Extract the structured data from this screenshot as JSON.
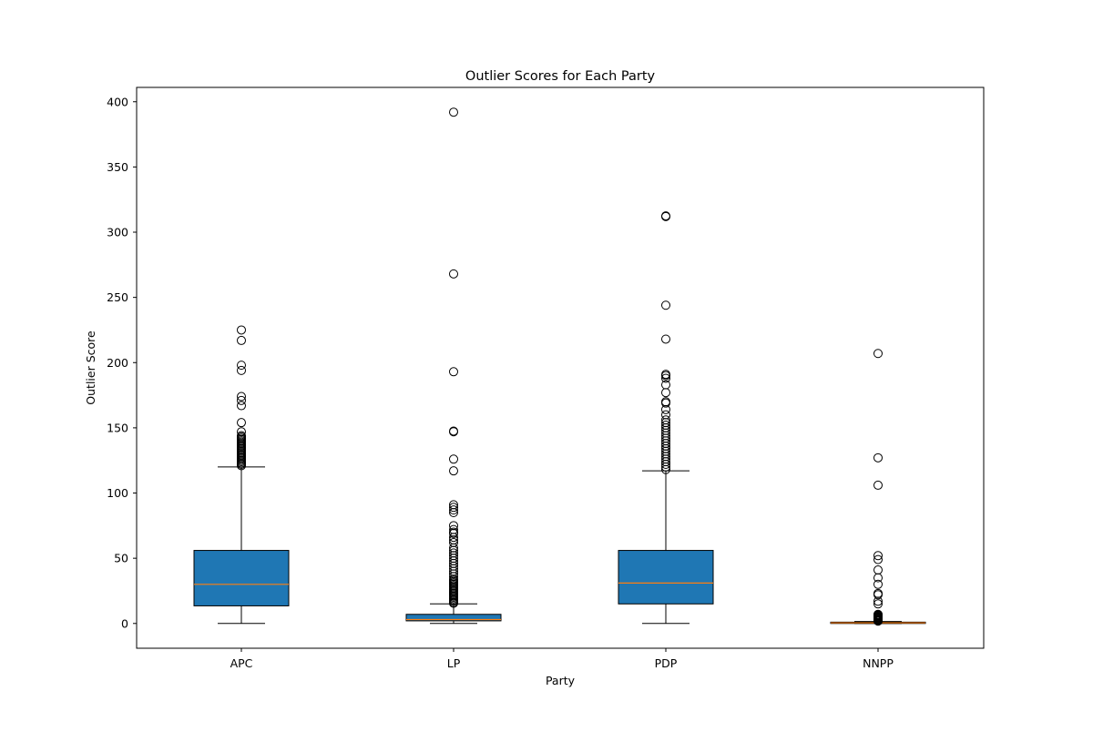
{
  "chart_data": {
    "type": "box",
    "title": "Outlier Scores for Each Party",
    "xlabel": "Party",
    "ylabel": "Outlier Score",
    "ylim": [
      -19,
      411
    ],
    "yticks": [
      0,
      50,
      100,
      150,
      200,
      250,
      300,
      350,
      400
    ],
    "categories": [
      "APC",
      "LP",
      "PDP",
      "NNPP"
    ],
    "box_color": "#1f77b4",
    "median_color": "#ff7f0e",
    "boxes": [
      {
        "label": "APC",
        "whisker_low": 0,
        "q1": 13.5,
        "median": 30,
        "q3": 56,
        "whisker_high": 120,
        "outliers": [
          121,
          122,
          123,
          124,
          125,
          126,
          127,
          128,
          129,
          130,
          131,
          132,
          133,
          134,
          135,
          136,
          137,
          138,
          139,
          140,
          141,
          142,
          143,
          144,
          147,
          154,
          167,
          171,
          174,
          194,
          198,
          217,
          225
        ]
      },
      {
        "label": "LP",
        "whisker_low": 0,
        "q1": 2,
        "median": 3,
        "q3": 7,
        "whisker_high": 15,
        "outliers": [
          15.5,
          16,
          17,
          18,
          19,
          20,
          21,
          22,
          23,
          24,
          25,
          26,
          27,
          28,
          29,
          30,
          31,
          32,
          33,
          34,
          36,
          38,
          40,
          42,
          44,
          46,
          48,
          50,
          52,
          54,
          56,
          58,
          62,
          64,
          66,
          69,
          70,
          72,
          75,
          85,
          87,
          89,
          91,
          117,
          126,
          147,
          147.5,
          193,
          268,
          392
        ]
      },
      {
        "label": "PDP",
        "whisker_low": 0,
        "q1": 15,
        "median": 31,
        "q3": 56,
        "whisker_high": 117,
        "outliers": [
          118,
          120,
          122,
          124,
          126,
          128,
          130,
          132,
          134,
          136,
          138,
          140,
          142,
          144,
          146,
          148,
          150,
          152,
          154,
          156,
          160,
          164,
          169,
          170,
          177,
          183,
          188,
          190,
          191,
          218,
          244,
          312,
          312.5
        ]
      },
      {
        "label": "NNPP",
        "whisker_low": 0,
        "q1": 0,
        "median": 0.5,
        "q3": 1,
        "whisker_high": 1.5,
        "outliers": [
          1.8,
          2.2,
          2.6,
          3,
          3.5,
          4,
          4.5,
          5,
          5.5,
          6,
          6.5,
          7,
          15,
          17,
          22,
          23,
          30,
          35,
          41,
          49,
          52,
          106,
          127,
          207
        ]
      }
    ]
  }
}
